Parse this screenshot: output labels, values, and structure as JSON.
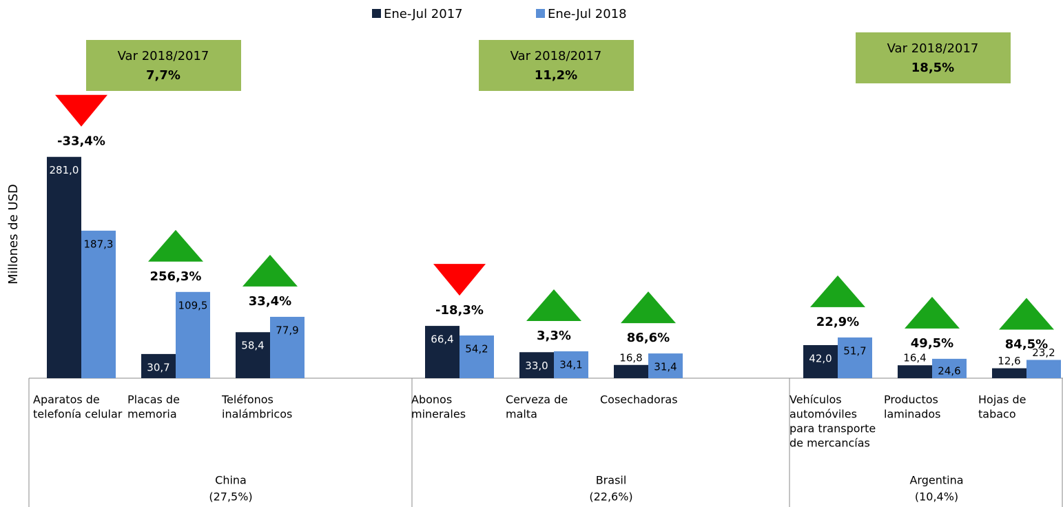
{
  "chart_data": {
    "type": "bar",
    "y_label": "Millones de USD",
    "ylim": [
      0,
      300
    ],
    "groups": [
      {
        "name": "China",
        "share": "(27,5%)",
        "var_title": "Var 2018/2017",
        "var": {
          "value": 7.7,
          "label": "7,7%"
        },
        "categories": [
          [
            "Aparatos de",
            "telefonía celular"
          ],
          [
            "Placas de",
            "memoria"
          ],
          [
            "Teléfonos",
            "inalámbricos"
          ]
        ]
      },
      {
        "name": "Brasil",
        "share": "(22,6%)",
        "var_title": "Var 2018/2017",
        "var": {
          "value": 11.2,
          "label": "11,2%"
        },
        "categories": [
          [
            "Abonos",
            "minerales"
          ],
          [
            "Cerveza de",
            "malta"
          ],
          [
            "Cosechadoras"
          ]
        ]
      },
      {
        "name": "Argentina",
        "share": "(10,4%)",
        "var_title": "Var 2018/2017",
        "var": {
          "value": 18.5,
          "label": "18,5%"
        },
        "categories": [
          [
            "Vehículos",
            "automóviles",
            "para transporte",
            "de mercancías"
          ],
          [
            "Productos",
            "laminados"
          ],
          [
            "Hojas de",
            "tabaco"
          ]
        ]
      }
    ],
    "series": [
      {
        "name": "Ene-Jul 2017",
        "color": "#14243f",
        "values": [
          281.0,
          30.7,
          58.4,
          66.4,
          33.0,
          16.8,
          42.0,
          16.4,
          12.6
        ],
        "value_labels": [
          "281,0",
          "30,7",
          "58,4",
          "66,4",
          "33,0",
          "16,8",
          "42,0",
          "16,4",
          "12,6"
        ]
      },
      {
        "name": "Ene-Jul 2018",
        "color": "#5b8fd6",
        "values": [
          187.3,
          109.5,
          77.9,
          54.2,
          34.1,
          31.4,
          51.7,
          24.6,
          23.2
        ],
        "value_labels": [
          "187,3",
          "109,5",
          "77,9",
          "54,2",
          "34,1",
          "31,4",
          "51,7",
          "24,6",
          "23,2"
        ]
      }
    ],
    "changes": [
      {
        "value": -33.4,
        "label": "-33,4%"
      },
      {
        "value": 256.3,
        "label": "256,3%"
      },
      {
        "value": 33.4,
        "label": "33,4%"
      },
      {
        "value": -18.3,
        "label": "-18,3%"
      },
      {
        "value": 3.3,
        "label": "3,3%"
      },
      {
        "value": 86.6,
        "label": "86,6%"
      },
      {
        "value": 22.9,
        "label": "22,9%"
      },
      {
        "value": 49.5,
        "label": "49,5%"
      },
      {
        "value": 84.5,
        "label": "84,5%"
      }
    ],
    "up_color": "#1aa51a",
    "down_color": "#ff0000",
    "box_color": "#9bbb59"
  }
}
